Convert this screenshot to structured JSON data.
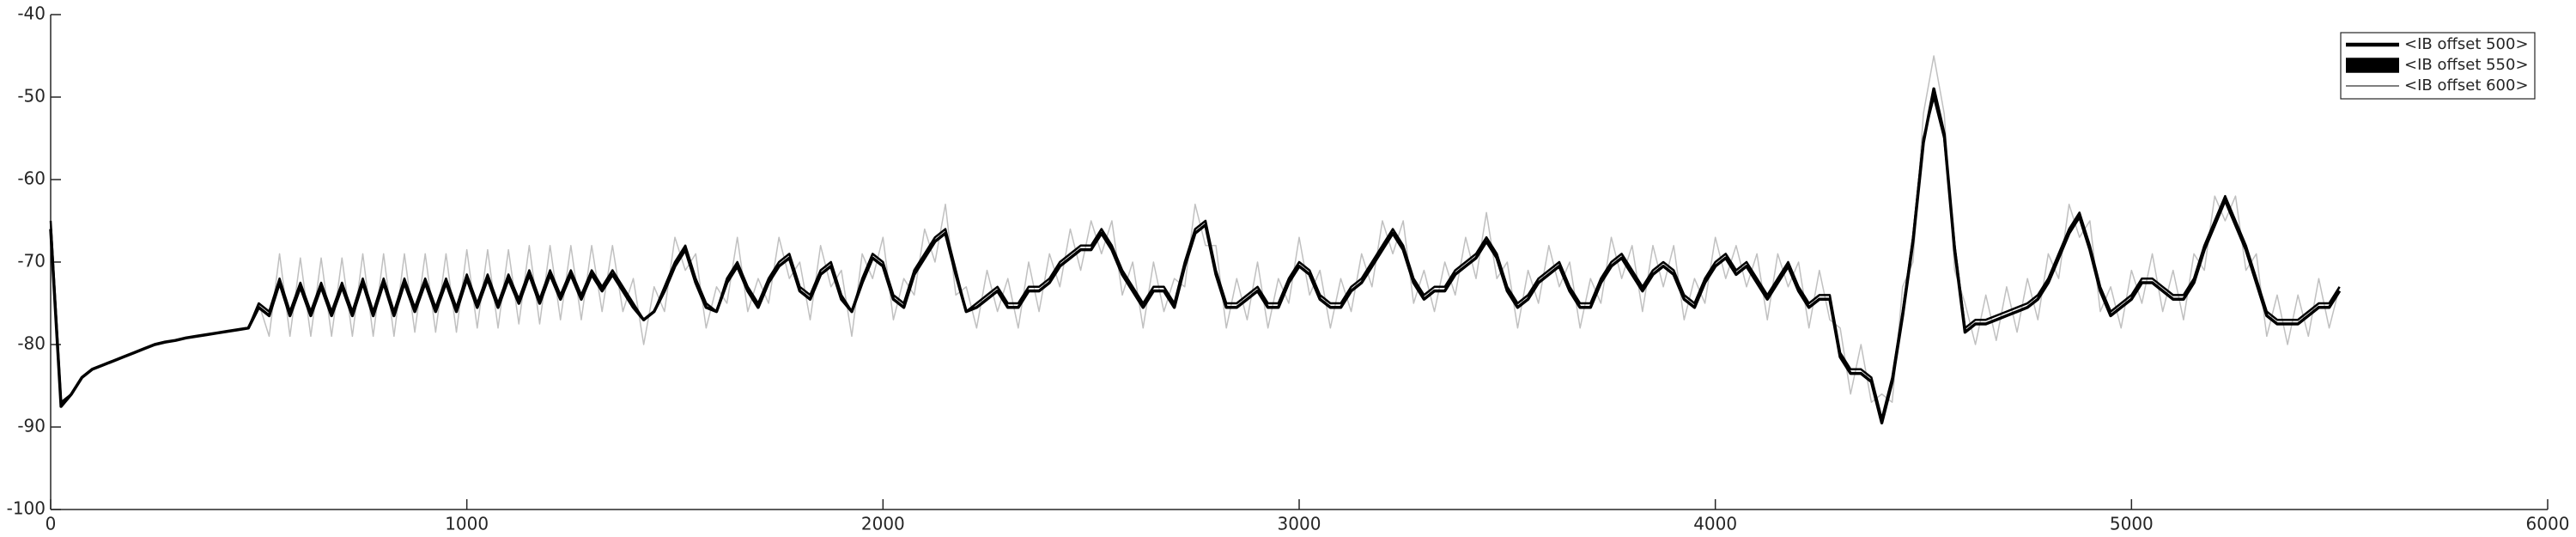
{
  "chart_data": {
    "type": "line",
    "x": [
      0,
      25,
      50,
      75,
      100,
      125,
      150,
      175,
      200,
      225,
      250,
      275,
      300,
      325,
      350,
      375,
      400,
      425,
      450,
      475,
      500,
      525,
      550,
      575,
      600,
      625,
      650,
      675,
      700,
      725,
      750,
      775,
      800,
      825,
      850,
      875,
      900,
      925,
      950,
      975,
      1000,
      1025,
      1050,
      1075,
      1100,
      1125,
      1150,
      1175,
      1200,
      1225,
      1250,
      1275,
      1300,
      1325,
      1350,
      1375,
      1400,
      1425,
      1450,
      1475,
      1500,
      1525,
      1550,
      1575,
      1600,
      1625,
      1650,
      1675,
      1700,
      1725,
      1750,
      1775,
      1800,
      1825,
      1850,
      1875,
      1900,
      1925,
      1950,
      1975,
      2000,
      2025,
      2050,
      2075,
      2100,
      2125,
      2150,
      2175,
      2200,
      2225,
      2250,
      2275,
      2300,
      2325,
      2350,
      2375,
      2400,
      2425,
      2450,
      2475,
      2500,
      2525,
      2550,
      2575,
      2600,
      2625,
      2650,
      2675,
      2700,
      2725,
      2750,
      2775,
      2800,
      2825,
      2850,
      2875,
      2900,
      2925,
      2950,
      2975,
      3000,
      3025,
      3050,
      3075,
      3100,
      3125,
      3150,
      3175,
      3200,
      3225,
      3250,
      3275,
      3300,
      3325,
      3350,
      3375,
      3400,
      3425,
      3450,
      3475,
      3500,
      3525,
      3550,
      3575,
      3600,
      3625,
      3650,
      3675,
      3700,
      3725,
      3750,
      3775,
      3800,
      3825,
      3850,
      3875,
      3900,
      3925,
      3950,
      3975,
      4000,
      4025,
      4050,
      4075,
      4100,
      4125,
      4150,
      4175,
      4200,
      4225,
      4250,
      4275,
      4300,
      4325,
      4350,
      4375,
      4400,
      4425,
      4450,
      4475,
      4500,
      4525,
      4550,
      4575,
      4600,
      4625,
      4650,
      4675,
      4700,
      4725,
      4750,
      4775,
      4800,
      4825,
      4850,
      4875,
      4900,
      4925,
      4950,
      4975,
      5000,
      5025,
      5050,
      5075,
      5100,
      5125,
      5150,
      5175,
      5200,
      5225,
      5250,
      5275,
      5300,
      5325,
      5350,
      5375,
      5400,
      5425,
      5450,
      5475,
      5500
    ],
    "series": [
      {
        "name": "<IB offset 500>",
        "color": "#000000",
        "line_width": 2.5,
        "values": [
          -65,
          -87,
          -86,
          -84,
          -83,
          -82.5,
          -82,
          -81.5,
          -81,
          -80.5,
          -80,
          -79.7,
          -79.5,
          -79.2,
          -79,
          -78.8,
          -78.6,
          -78.4,
          -78.2,
          -78,
          -75,
          -76,
          -72,
          -76,
          -72.5,
          -76,
          -72.5,
          -76,
          -72.5,
          -76,
          -72,
          -76,
          -72,
          -76,
          -72,
          -75.5,
          -72,
          -75.5,
          -72,
          -75.5,
          -71.5,
          -75,
          -71.5,
          -75,
          -71.5,
          -74.5,
          -71,
          -74.5,
          -71,
          -74,
          -71,
          -74,
          -71,
          -73,
          -71,
          -73,
          -75,
          -77,
          -76,
          -73,
          -70,
          -68,
          -72,
          -75,
          -76,
          -72,
          -70,
          -73,
          -75,
          -72,
          -70,
          -69,
          -73,
          -74,
          -71,
          -70,
          -74,
          -76,
          -72,
          -69,
          -70,
          -74,
          -75,
          -71,
          -69,
          -67,
          -66,
          -71,
          -76,
          -75,
          -74,
          -73,
          -75,
          -75,
          -73,
          -73,
          -72,
          -70,
          -69,
          -68,
          -68,
          -66,
          -68,
          -71,
          -73,
          -75,
          -73,
          -73,
          -75,
          -70,
          -66,
          -65,
          -71,
          -75,
          -75,
          -74,
          -73,
          -75,
          -75,
          -72,
          -70,
          -71,
          -74,
          -75,
          -75,
          -73,
          -72,
          -70,
          -68,
          -66,
          -68,
          -72,
          -74,
          -73,
          -73,
          -71,
          -70,
          -69,
          -67,
          -69,
          -73,
          -75,
          -74,
          -72,
          -71,
          -70,
          -73,
          -75,
          -75,
          -72,
          -70,
          -69,
          -71,
          -73,
          -71,
          -70,
          -71,
          -74,
          -75,
          -72,
          -70,
          -69,
          -71,
          -70,
          -72,
          -74,
          -72,
          -70,
          -73,
          -75,
          -74,
          -74,
          -81,
          -83,
          -83,
          -84,
          -89,
          -84,
          -76,
          -67,
          -55,
          -50,
          -55,
          -68,
          -78,
          -77,
          -77,
          -76.5,
          -76,
          -75.5,
          -75,
          -74,
          -72,
          -69,
          -66,
          -64,
          -68,
          -73,
          -76,
          -75,
          -74,
          -72,
          -72,
          -73,
          -74,
          -74,
          -72,
          -68,
          -65,
          -62,
          -65,
          -68,
          -72,
          -76,
          -77,
          -77,
          -77,
          -76,
          -75,
          -75,
          -73
        ]
      },
      {
        "name": "<IB offset 550>",
        "color": "#000000",
        "line_width": 3.5,
        "values": [
          -66,
          -87.5,
          -86,
          -84,
          -83,
          -82.5,
          -82,
          -81.5,
          -81,
          -80.5,
          -80,
          -79.7,
          -79.5,
          -79.2,
          -79,
          -78.8,
          -78.6,
          -78.4,
          -78.2,
          -78,
          -75.5,
          -76.5,
          -72.5,
          -76.5,
          -73,
          -76.5,
          -73,
          -76.5,
          -73,
          -76.5,
          -72.5,
          -76.5,
          -72.5,
          -76.5,
          -72.5,
          -76,
          -72.5,
          -76,
          -72.5,
          -76,
          -72,
          -75.5,
          -72,
          -75.5,
          -72,
          -75,
          -71.5,
          -75,
          -71.5,
          -74.5,
          -71.5,
          -74.5,
          -71.5,
          -73.5,
          -71.5,
          -73.5,
          -75.5,
          -77,
          -76,
          -73.5,
          -70.5,
          -68.5,
          -72.5,
          -75.5,
          -76,
          -72.5,
          -70.5,
          -73.5,
          -75.5,
          -72.5,
          -70.5,
          -69.5,
          -73.5,
          -74.5,
          -71.5,
          -70.5,
          -74.5,
          -76,
          -72.5,
          -69.5,
          -70.5,
          -74.5,
          -75.5,
          -71.5,
          -69.5,
          -67.5,
          -66.5,
          -71.5,
          -76,
          -75.5,
          -74.5,
          -73.5,
          -75.5,
          -75.5,
          -73.5,
          -73.5,
          -72.5,
          -70.5,
          -69.5,
          -68.5,
          -68.5,
          -66.5,
          -68.5,
          -71.5,
          -73.5,
          -75.5,
          -73.5,
          -73.5,
          -75.5,
          -70.5,
          -66.5,
          -65.5,
          -71.5,
          -75.5,
          -75.5,
          -74.5,
          -73.5,
          -75.5,
          -75.5,
          -72.5,
          -70.5,
          -71.5,
          -74.5,
          -75.5,
          -75.5,
          -73.5,
          -72.5,
          -70.5,
          -68.5,
          -66.5,
          -68.5,
          -72.5,
          -74.5,
          -73.5,
          -73.5,
          -71.5,
          -70.5,
          -69.5,
          -67.5,
          -69.5,
          -73.5,
          -75.5,
          -74.5,
          -72.5,
          -71.5,
          -70.5,
          -73.5,
          -75.5,
          -75.5,
          -72.5,
          -70.5,
          -69.5,
          -71.5,
          -73.5,
          -71.5,
          -70.5,
          -71.5,
          -74.5,
          -75.5,
          -72.5,
          -70.5,
          -69.5,
          -71.5,
          -70.5,
          -72.5,
          -74.5,
          -72.5,
          -70.5,
          -73.5,
          -75.5,
          -74.5,
          -74.5,
          -81.5,
          -83.5,
          -83.5,
          -84.5,
          -89.5,
          -84.5,
          -76.5,
          -67.5,
          -55.5,
          -49,
          -54.5,
          -68.5,
          -78.5,
          -77.5,
          -77.5,
          -77,
          -76.5,
          -76,
          -75.5,
          -74.5,
          -72.5,
          -69.5,
          -66.5,
          -64.5,
          -68.5,
          -73.5,
          -76.5,
          -75.5,
          -74.5,
          -72.5,
          -72.5,
          -73.5,
          -74.5,
          -74.5,
          -72.5,
          -68.5,
          -65.5,
          -62.5,
          -65.5,
          -68.5,
          -72.5,
          -76.5,
          -77.5,
          -77.5,
          -77.5,
          -76.5,
          -75.5,
          -75.5,
          -73.5
        ]
      },
      {
        "name": "<IB offset 600>",
        "color": "#c0c0c0",
        "line_width": 1.5,
        "values": [
          -65,
          -87,
          -86,
          -84,
          -83,
          -82.5,
          -82,
          -81.5,
          -81,
          -80.5,
          -80,
          -79.7,
          -79.5,
          -79.2,
          -79,
          -78.8,
          -78.6,
          -78.4,
          -78.2,
          -78,
          -75,
          -79,
          -69,
          -79,
          -69.5,
          -79,
          -69.5,
          -79,
          -69.5,
          -79,
          -69,
          -79,
          -69,
          -79,
          -69,
          -78.5,
          -69,
          -78.5,
          -69,
          -78.5,
          -68.5,
          -78,
          -68.5,
          -78,
          -68.5,
          -77.5,
          -68,
          -77.5,
          -68,
          -77,
          -68,
          -77,
          -68,
          -76,
          -68,
          -76,
          -72,
          -80,
          -73,
          -76,
          -67,
          -71,
          -69,
          -78,
          -73,
          -75,
          -67,
          -76,
          -72,
          -75,
          -67,
          -72,
          -70,
          -77,
          -68,
          -73,
          -71,
          -79,
          -69,
          -72,
          -67,
          -77,
          -72,
          -74,
          -66,
          -70,
          -63,
          -74,
          -73,
          -78,
          -71,
          -76,
          -72,
          -78,
          -70,
          -76,
          -69,
          -73,
          -66,
          -71,
          -65,
          -69,
          -65,
          -74,
          -70,
          -78,
          -70,
          -76,
          -72,
          -73,
          -63,
          -68,
          -68,
          -78,
          -72,
          -77,
          -70,
          -78,
          -72,
          -75,
          -67,
          -74,
          -71,
          -78,
          -72,
          -76,
          -69,
          -73,
          -65,
          -69,
          -65,
          -75,
          -71,
          -76,
          -70,
          -74,
          -67,
          -72,
          -64,
          -72,
          -70,
          -78,
          -71,
          -75,
          -68,
          -73,
          -70,
          -78,
          -72,
          -75,
          -67,
          -72,
          -68,
          -76,
          -68,
          -73,
          -68,
          -77,
          -72,
          -75,
          -67,
          -72,
          -68,
          -73,
          -69,
          -77,
          -69,
          -73,
          -70,
          -78,
          -71,
          -77,
          -78,
          -86,
          -80,
          -87,
          -86,
          -87,
          -73,
          -70,
          -52,
          -45,
          -52,
          -71,
          -75,
          -80,
          -74,
          -79.5,
          -73,
          -78.5,
          -72,
          -77,
          -69,
          -72,
          -63,
          -67,
          -65,
          -76,
          -73,
          -78,
          -71,
          -75,
          -69,
          -76,
          -71,
          -77,
          -69,
          -71,
          -62,
          -65,
          -62,
          -71,
          -69,
          -79,
          -74,
          -80,
          -74,
          -79,
          -72,
          -78,
          -73
        ]
      }
    ],
    "xlim": [
      0,
      6000
    ],
    "xticks": [
      0,
      1000,
      2000,
      3000,
      4000,
      5000,
      6000
    ],
    "ylim": [
      -100,
      -40
    ],
    "yticks": [
      -100,
      -90,
      -80,
      -70,
      -60,
      -50,
      -40
    ],
    "grid": false,
    "legend": "upper right"
  }
}
